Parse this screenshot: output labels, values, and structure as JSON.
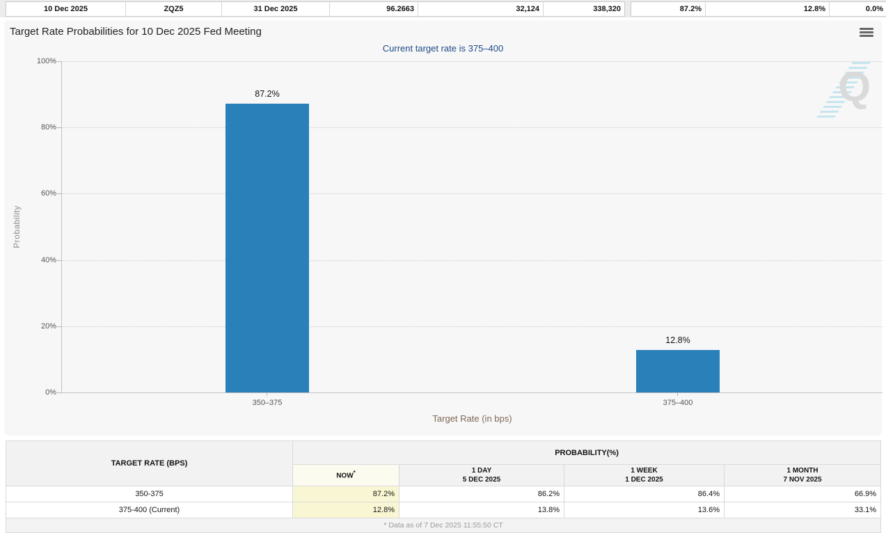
{
  "colors": {
    "bar_blue": "#2a80b9",
    "subtitle_navy": "#1d4a87",
    "now_highlight_yellow": "#f9f7d3",
    "panel_background": "#f7f7f7"
  },
  "top_strip": {
    "left_cells": [
      "10 Dec 2025",
      "ZQZ5",
      "31 Dec 2025",
      "96.2663",
      "32,124",
      "338,320"
    ],
    "right_cells": [
      "87.2%",
      "12.8%",
      "0.0%"
    ]
  },
  "chart_panel": {
    "title": "Target Rate Probabilities for 10 Dec 2025 Fed Meeting",
    "subtitle": "Current target rate is 375–400",
    "menu_icon": "hamburger-menu",
    "watermark_letter": "Q"
  },
  "chart_data": {
    "type": "bar",
    "title": "Target Rate Probabilities for 10 Dec 2025 Fed Meeting",
    "subtitle": "Current target rate is 375–400",
    "categories": [
      "350–375",
      "375–400"
    ],
    "values": [
      87.2,
      12.8
    ],
    "value_labels": [
      "87.2%",
      "12.8%"
    ],
    "xlabel": "Target Rate (in bps)",
    "ylabel": "Probability",
    "ylim": [
      0,
      100
    ],
    "ytick_labels": [
      "100%",
      "80%",
      "60%",
      "40%",
      "20%",
      "0%"
    ],
    "grid": "horizontal-dotted",
    "legend": "none",
    "bar_color": "#2a80b9"
  },
  "table": {
    "target_rate_header": "TARGET RATE (BPS)",
    "probability_header": "PROBABILITY(%)",
    "now_label": "NOW",
    "now_sup": "*",
    "col_headers": [
      {
        "period": "1 DAY",
        "date": "5 DEC 2025"
      },
      {
        "period": "1 WEEK",
        "date": "1 DEC 2025"
      },
      {
        "period": "1 MONTH",
        "date": "7 NOV 2025"
      }
    ],
    "rows": [
      {
        "rate": "350-375",
        "now": "87.2%",
        "one_day": "86.2%",
        "one_week": "86.4%",
        "one_month": "66.9%"
      },
      {
        "rate": "375-400 (Current)",
        "now": "12.8%",
        "one_day": "13.8%",
        "one_week": "13.6%",
        "one_month": "33.1%"
      }
    ],
    "footnote": "* Data as of 7 Dec 2025 11:55:50 CT"
  }
}
